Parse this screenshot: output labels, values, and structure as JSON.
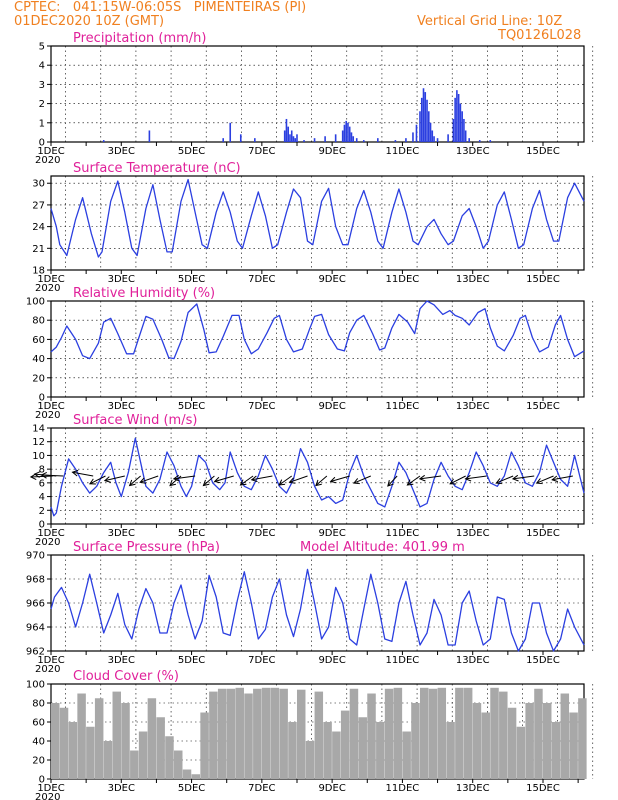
{
  "header": {
    "line1_left": "CPTEC:   041:15W-06:05S   PIMENTEIRAS (PI)",
    "line2_left": "01DEC2020 10Z (GMT)",
    "line1_right": "Vertical Grid Line: 10Z",
    "line2_right": "TQ0126L028"
  },
  "x_axis": {
    "tick_labels": [
      "1DEC",
      "3DEC",
      "5DEC",
      "7DEC",
      "9DEC",
      "11DEC",
      "13DEC",
      "15DEC"
    ],
    "year_label": "2020",
    "day_range": [
      1,
      16.167
    ]
  },
  "colors": {
    "line": "#2b3fe0",
    "bars": "#2b3fe0",
    "cloud": "#a8a8a8",
    "title": "#e0209a",
    "header": "#f08020"
  },
  "chart_data": [
    {
      "type": "bar",
      "title": "Precipitation (mm/h)",
      "ylim": [
        0,
        5
      ],
      "yticks": [
        "0",
        "1",
        "2",
        "3",
        "4",
        "5"
      ],
      "x_day": [
        2.5,
        3.8,
        5.9,
        6.1,
        6.4,
        6.8,
        7.65,
        7.7,
        7.75,
        7.8,
        7.85,
        7.9,
        7.95,
        8.0,
        8.2,
        8.5,
        8.8,
        9.1,
        9.3,
        9.35,
        9.4,
        9.45,
        9.5,
        9.55,
        9.6,
        9.7,
        9.9,
        10.3,
        10.8,
        11.1,
        11.3,
        11.4,
        11.5,
        11.55,
        11.6,
        11.65,
        11.7,
        11.75,
        11.8,
        11.85,
        11.9,
        12.0,
        12.3,
        12.45,
        12.5,
        12.55,
        12.6,
        12.65,
        12.7,
        12.75,
        12.8,
        12.9,
        13.2,
        13.5
      ],
      "values": [
        0.1,
        0.6,
        0.2,
        1.0,
        0.4,
        0.2,
        0.6,
        1.2,
        0.8,
        0.4,
        0.6,
        0.3,
        0.2,
        0.4,
        0.1,
        0.2,
        0.3,
        0.4,
        0.6,
        0.9,
        1.1,
        1.0,
        0.8,
        0.5,
        0.3,
        0.2,
        0.1,
        0.2,
        0.1,
        0.2,
        0.5,
        0.9,
        1.6,
        2.3,
        2.8,
        2.6,
        2.2,
        1.6,
        1.0,
        0.6,
        0.3,
        0.2,
        0.4,
        1.2,
        2.3,
        2.7,
        2.5,
        2.0,
        1.6,
        1.2,
        0.6,
        0.2,
        0.1,
        0.1
      ]
    },
    {
      "type": "line",
      "title": "Surface Temperature (nC)",
      "ylim": [
        18,
        31
      ],
      "yticks": [
        "18",
        "21",
        "24",
        "27",
        "30"
      ],
      "x_day": [
        1.0,
        1.15,
        1.25,
        1.45,
        1.7,
        1.9,
        2.15,
        2.35,
        2.45,
        2.7,
        2.9,
        3.1,
        3.3,
        3.45,
        3.7,
        3.9,
        4.1,
        4.3,
        4.45,
        4.7,
        4.9,
        5.1,
        5.3,
        5.45,
        5.7,
        5.9,
        6.1,
        6.3,
        6.45,
        6.7,
        6.9,
        7.1,
        7.3,
        7.45,
        7.7,
        7.9,
        8.1,
        8.3,
        8.45,
        8.7,
        8.9,
        9.1,
        9.3,
        9.45,
        9.7,
        9.9,
        10.1,
        10.3,
        10.45,
        10.7,
        10.9,
        11.1,
        11.3,
        11.45,
        11.7,
        11.9,
        12.1,
        12.3,
        12.45,
        12.7,
        12.9,
        13.1,
        13.3,
        13.45,
        13.7,
        13.9,
        14.1,
        14.3,
        14.45,
        14.7,
        14.9,
        15.1,
        15.3,
        15.45,
        15.7,
        15.9,
        16.167
      ],
      "values": [
        26.5,
        24.0,
        21.5,
        20.0,
        25.0,
        28.0,
        23.0,
        19.8,
        20.5,
        27.5,
        30.3,
        26.0,
        21.0,
        20.0,
        26.5,
        29.8,
        25.0,
        20.5,
        20.5,
        27.5,
        30.5,
        26.0,
        21.5,
        21.0,
        26.0,
        28.8,
        26.0,
        22.0,
        21.0,
        25.5,
        28.8,
        25.5,
        21.0,
        21.5,
        26.0,
        29.2,
        28.0,
        22.0,
        21.5,
        27.5,
        29.3,
        24.0,
        21.5,
        21.5,
        26.5,
        29.0,
        26.0,
        22.0,
        21.0,
        26.0,
        29.2,
        26.0,
        22.0,
        21.5,
        24.0,
        25.0,
        23.0,
        21.5,
        22.0,
        25.5,
        26.5,
        24.0,
        21.0,
        22.0,
        27.0,
        28.8,
        25.0,
        21.0,
        21.5,
        26.5,
        29.0,
        25.0,
        22.0,
        22.0,
        28.0,
        30.0,
        27.5
      ]
    },
    {
      "type": "line",
      "title": "Relative Humidity (%)",
      "ylim": [
        0,
        100
      ],
      "yticks": [
        "0",
        "20",
        "40",
        "60",
        "80",
        "100"
      ],
      "x_day": [
        1.0,
        1.15,
        1.3,
        1.45,
        1.7,
        1.9,
        2.1,
        2.35,
        2.5,
        2.7,
        2.9,
        3.15,
        3.35,
        3.5,
        3.7,
        3.9,
        4.15,
        4.35,
        4.5,
        4.7,
        4.9,
        5.15,
        5.35,
        5.5,
        5.7,
        5.9,
        6.15,
        6.35,
        6.5,
        6.7,
        6.9,
        7.15,
        7.35,
        7.5,
        7.7,
        7.9,
        8.15,
        8.35,
        8.5,
        8.7,
        8.9,
        9.15,
        9.35,
        9.5,
        9.7,
        9.9,
        10.15,
        10.35,
        10.5,
        10.7,
        10.9,
        11.15,
        11.35,
        11.5,
        11.7,
        11.9,
        12.15,
        12.35,
        12.5,
        12.7,
        12.9,
        13.15,
        13.35,
        13.5,
        13.7,
        13.9,
        14.15,
        14.35,
        14.5,
        14.7,
        14.9,
        15.15,
        15.35,
        15.5,
        15.7,
        15.9,
        16.167
      ],
      "values": [
        47,
        52,
        62,
        74,
        60,
        43,
        40,
        56,
        78,
        82,
        66,
        45,
        45,
        62,
        84,
        81,
        60,
        41,
        40,
        58,
        88,
        97,
        70,
        46,
        47,
        63,
        85,
        85,
        60,
        45,
        50,
        67,
        82,
        85,
        60,
        47,
        50,
        70,
        84,
        86,
        65,
        50,
        48,
        67,
        80,
        85,
        66,
        49,
        51,
        72,
        86,
        78,
        66,
        92,
        100,
        96,
        86,
        90,
        85,
        82,
        75,
        88,
        92,
        72,
        53,
        48,
        64,
        82,
        85,
        62,
        47,
        52,
        75,
        85,
        60,
        42,
        48
      ]
    },
    {
      "type": "line",
      "title": "Surface Wind (m/s)",
      "ylim": [
        0,
        14
      ],
      "yticks": [
        "0",
        "2",
        "4",
        "6",
        "8",
        "10",
        "12",
        "14"
      ],
      "x_day": [
        1.0,
        1.08,
        1.15,
        1.3,
        1.5,
        1.7,
        1.9,
        2.1,
        2.3,
        2.5,
        2.7,
        2.85,
        3.0,
        3.2,
        3.4,
        3.55,
        3.7,
        3.9,
        4.1,
        4.3,
        4.5,
        4.7,
        4.85,
        5.0,
        5.2,
        5.4,
        5.6,
        5.8,
        5.95,
        6.1,
        6.3,
        6.5,
        6.7,
        6.9,
        7.1,
        7.3,
        7.5,
        7.7,
        7.9,
        8.1,
        8.3,
        8.5,
        8.7,
        8.9,
        9.1,
        9.3,
        9.5,
        9.7,
        9.9,
        10.1,
        10.3,
        10.5,
        10.7,
        10.9,
        11.1,
        11.3,
        11.5,
        11.7,
        11.9,
        12.1,
        12.3,
        12.5,
        12.7,
        12.9,
        13.1,
        13.3,
        13.5,
        13.7,
        13.9,
        14.1,
        14.3,
        14.5,
        14.7,
        14.9,
        15.1,
        15.3,
        15.5,
        15.7,
        15.9,
        16.167
      ],
      "values": [
        2.5,
        1.2,
        1.6,
        5.5,
        9.5,
        8.0,
        6.0,
        4.5,
        5.5,
        7.5,
        9.0,
        6.0,
        4.0,
        7.5,
        12.5,
        9.0,
        5.5,
        4.5,
        6.5,
        10.5,
        8.5,
        5.5,
        4.0,
        5.5,
        10.0,
        9.0,
        6.0,
        5.0,
        6.0,
        10.5,
        7.5,
        5.5,
        5.0,
        7.0,
        10.0,
        8.0,
        5.5,
        4.5,
        6.5,
        11.0,
        9.0,
        5.5,
        3.5,
        4.0,
        3.0,
        3.5,
        7.5,
        10.0,
        7.0,
        5.0,
        3.0,
        2.5,
        5.5,
        9.0,
        7.5,
        5.0,
        2.5,
        3.0,
        6.5,
        9.0,
        7.0,
        5.5,
        5.0,
        7.5,
        10.5,
        8.5,
        6.0,
        5.5,
        7.0,
        10.5,
        8.5,
        6.0,
        5.5,
        7.5,
        11.5,
        9.0,
        6.5,
        5.5,
        10.0,
        4.5
      ],
      "vectors_day": [
        1.05,
        1.15,
        1.35,
        2.2,
        2.55,
        3.1,
        3.55,
        4.05,
        4.7,
        5.1,
        5.65,
        6.2,
        6.75,
        7.3,
        7.85,
        8.3,
        8.85,
        9.5,
        10.1,
        10.85,
        11.5,
        12.1,
        12.8,
        13.4,
        14.15,
        14.75,
        15.3,
        15.85
      ],
      "vectors_dir": [
        5,
        350,
        355,
        340,
        45,
        25,
        60,
        35,
        60,
        15,
        60,
        30,
        55,
        20,
        55,
        35,
        60,
        30,
        40,
        65,
        55,
        15,
        45,
        15,
        40,
        15,
        40,
        20
      ]
    },
    {
      "type": "line",
      "title": "Surface Pressure (hPa)",
      "annotation": "Model Altitude: 401.99 m",
      "ylim": [
        962,
        970
      ],
      "yticks": [
        "962",
        "964",
        "966",
        "968",
        "970"
      ],
      "x_day": [
        1.0,
        1.1,
        1.3,
        1.5,
        1.7,
        1.9,
        2.1,
        2.3,
        2.5,
        2.7,
        2.9,
        3.1,
        3.3,
        3.5,
        3.7,
        3.9,
        4.1,
        4.3,
        4.5,
        4.7,
        4.9,
        5.1,
        5.3,
        5.5,
        5.7,
        5.9,
        6.1,
        6.3,
        6.5,
        6.7,
        6.9,
        7.1,
        7.3,
        7.5,
        7.7,
        7.9,
        8.1,
        8.3,
        8.5,
        8.7,
        8.9,
        9.1,
        9.3,
        9.5,
        9.7,
        9.9,
        10.1,
        10.3,
        10.5,
        10.7,
        10.9,
        11.1,
        11.3,
        11.5,
        11.7,
        11.9,
        12.1,
        12.3,
        12.5,
        12.7,
        12.9,
        13.1,
        13.3,
        13.5,
        13.7,
        13.9,
        14.1,
        14.3,
        14.5,
        14.7,
        14.9,
        15.1,
        15.3,
        15.5,
        15.7,
        15.9,
        16.167
      ],
      "values": [
        965.5,
        966.5,
        967.3,
        966.0,
        964.0,
        966.0,
        968.4,
        966.0,
        963.5,
        965.0,
        966.8,
        964.2,
        963.0,
        965.5,
        967.2,
        966.0,
        963.5,
        963.5,
        966.0,
        967.5,
        965.0,
        963.0,
        964.5,
        968.3,
        966.5,
        963.5,
        963.3,
        966.2,
        968.6,
        966.0,
        963.0,
        963.8,
        966.5,
        968.0,
        965.0,
        963.2,
        965.5,
        968.8,
        966.0,
        963.0,
        964.0,
        967.3,
        966.0,
        963.0,
        962.5,
        965.5,
        968.4,
        966.0,
        963.0,
        962.8,
        966.0,
        967.8,
        965.0,
        962.5,
        963.5,
        966.3,
        965.0,
        962.5,
        962.5,
        966.0,
        967.0,
        964.5,
        962.5,
        963.0,
        966.5,
        966.3,
        963.5,
        962.0,
        963.0,
        966.0,
        966.0,
        963.5,
        962.0,
        963.0,
        965.5,
        964.0,
        962.5
      ]
    },
    {
      "type": "bar",
      "title": "Cloud Cover (%)",
      "ylim": [
        0,
        100
      ],
      "yticks": [
        "0",
        "20",
        "40",
        "60",
        "80",
        "100"
      ],
      "x_day": [
        1.0,
        1.25,
        1.5,
        1.75,
        2.0,
        2.25,
        2.5,
        2.75,
        3.0,
        3.25,
        3.5,
        3.75,
        4.0,
        4.25,
        4.5,
        4.75,
        5.0,
        5.25,
        5.5,
        5.75,
        6.0,
        6.25,
        6.5,
        6.75,
        7.0,
        7.25,
        7.5,
        7.75,
        8.0,
        8.25,
        8.5,
        8.75,
        9.0,
        9.25,
        9.5,
        9.75,
        10.0,
        10.25,
        10.5,
        10.75,
        11.0,
        11.25,
        11.5,
        11.75,
        12.0,
        12.25,
        12.5,
        12.75,
        13.0,
        13.25,
        13.5,
        13.75,
        14.0,
        14.25,
        14.5,
        14.75,
        15.0,
        15.25,
        15.5,
        15.75,
        16.0
      ],
      "values": [
        80,
        75,
        60,
        90,
        55,
        85,
        40,
        92,
        80,
        30,
        50,
        85,
        65,
        45,
        30,
        10,
        5,
        70,
        92,
        95,
        95,
        96,
        90,
        95,
        96,
        96,
        95,
        60,
        94,
        40,
        92,
        60,
        50,
        72,
        95,
        65,
        90,
        60,
        95,
        96,
        50,
        80,
        96,
        95,
        96,
        60,
        96,
        96,
        80,
        70,
        96,
        92,
        75,
        55,
        80,
        95,
        80,
        60,
        90,
        70,
        85
      ]
    }
  ]
}
